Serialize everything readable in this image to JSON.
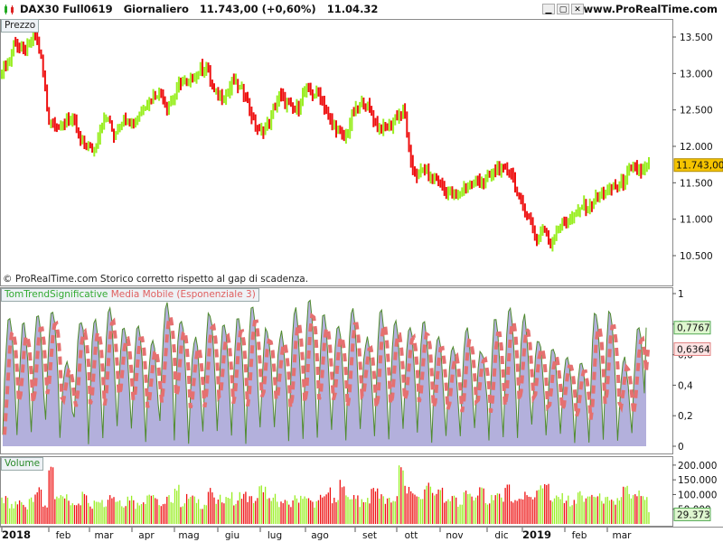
{
  "header": {
    "symbol": "DAX30 Full0619",
    "period": "Giornaliero",
    "last_price": "11.743,00 (+0,60%)",
    "time": "11.04.32",
    "url": "www.ProRealTime.com"
  },
  "colors": {
    "up": "#99ee22",
    "down": "#ee1111",
    "indicator_fill": "#b3b0dc",
    "indicator_line": "#4f8a2e",
    "ema": "#e57070",
    "price_badge": "#f5c400",
    "volume_badge": "#dff7d0"
  },
  "panels": {
    "price_label": "Prezzo",
    "indicator_label_a": "TomTrendSignificative",
    "indicator_label_b": "Media Mobile (Esponenziale 3)",
    "volume_label": "Volume"
  },
  "copyright": "© ProRealTime.com  Storico corretto rispetto al gap di scadenza.",
  "chart_data": [
    {
      "type": "candlestick",
      "title": "Prezzo",
      "ylim": [
        10250,
        13750
      ],
      "y_ticks": [
        10500,
        11000,
        11500,
        12000,
        12500,
        13000,
        13500
      ],
      "y_tick_labels": [
        "10.500",
        "11.000",
        "11.500",
        "12.000",
        "12.500",
        "13.000",
        "13.500"
      ],
      "last_value_label": "11.743,00",
      "x_tick_labels": [
        "2018",
        "feb",
        "mar",
        "apr",
        "mag",
        "giu",
        "lug",
        "ago",
        "set",
        "ott",
        "nov",
        "dic",
        "2019",
        "feb",
        "mar"
      ],
      "closes": [
        13050,
        13150,
        13450,
        13300,
        13350,
        13550,
        13200,
        12400,
        12300,
        12250,
        12400,
        12300,
        12050,
        12000,
        11950,
        12300,
        12400,
        12150,
        12350,
        12400,
        12300,
        12500,
        12600,
        12700,
        12750,
        12550,
        12650,
        12900,
        12850,
        12950,
        13050,
        13100,
        12750,
        12700,
        12700,
        12900,
        12800,
        12700,
        12350,
        12200,
        12250,
        12450,
        12700,
        12600,
        12500,
        12550,
        12800,
        12700,
        12750,
        12500,
        12300,
        12200,
        12100,
        12400,
        12550,
        12600,
        12450,
        12250,
        12250,
        12300,
        12450,
        12450,
        11700,
        11600,
        11700,
        11550,
        11550,
        11400,
        11350,
        11300,
        11450,
        11450,
        11550,
        11500,
        11600,
        11700,
        11650,
        11700,
        11350,
        11150,
        11000,
        10700,
        10900,
        10650,
        10850,
        10950,
        11000,
        11050,
        11200,
        11150,
        11300,
        11350,
        11400,
        11450,
        11500,
        11650,
        11700,
        11650,
        11743
      ]
    },
    {
      "type": "area",
      "title": "TomTrendSignificative / Media Mobile (Esponenziale 3)",
      "ylim": [
        0,
        1
      ],
      "y_ticks": [
        0,
        0.2,
        0.4,
        0.6,
        0.8,
        1
      ],
      "y_tick_labels": [
        "0",
        "0,2",
        "0,4",
        "0,6",
        "0,8",
        "1"
      ],
      "series": [
        {
          "name": "TomTrendSignificative",
          "last": "0,7767"
        },
        {
          "name": "Media Mobile (Esponenziale 3)",
          "last": "0,6364"
        }
      ],
      "cycle_peaks": [
        0.85,
        0.8,
        0.88,
        0.9,
        0.55,
        0.82,
        0.86,
        0.93,
        0.8,
        0.78,
        0.7,
        0.95,
        0.85,
        0.72,
        0.88,
        0.8,
        0.86,
        0.92,
        0.78,
        0.74,
        0.9,
        0.96,
        0.87,
        0.8,
        0.92,
        0.7,
        0.88,
        0.83,
        0.79,
        0.82,
        0.72,
        0.65,
        0.78,
        0.62,
        0.84,
        0.92,
        0.86,
        0.7,
        0.66,
        0.6,
        0.55,
        0.88,
        0.9,
        0.58,
        0.77
      ],
      "cycle_troughs": [
        0.1,
        0.05,
        0.08,
        0.15,
        0.05,
        0.2,
        0.03,
        0.06,
        0.12,
        0.1,
        0.04,
        0.18,
        0.05,
        0.02,
        0.1,
        0.08,
        0.05,
        0.04,
        0.1,
        0.12,
        0.03,
        0.06,
        0.05,
        0.09,
        0.03,
        0.1,
        0.06,
        0.05,
        0.12,
        0.08,
        0.04,
        0.07,
        0.05,
        0.1,
        0.02,
        0.05,
        0.06,
        0.12,
        0.05,
        0.08,
        0.04,
        0.03,
        0.05,
        0.02,
        0.1
      ]
    },
    {
      "type": "bar",
      "title": "Volume",
      "ylim": [
        0,
        215000
      ],
      "y_ticks": [
        0,
        50000,
        100000,
        150000,
        200000
      ],
      "y_tick_labels": [
        "",
        "50.000",
        "100.000",
        "150.000",
        "200.000"
      ],
      "last_value_label": "29.373",
      "values_k": [
        80,
        55,
        72,
        60,
        90,
        110,
        65,
        180,
        85,
        95,
        70,
        75,
        100,
        60,
        85,
        72,
        95,
        80,
        70,
        90,
        65,
        80,
        100,
        75,
        60,
        85,
        120,
        70,
        90,
        80,
        65,
        110,
        75,
        85,
        95,
        70,
        100,
        85,
        80,
        120,
        75,
        90,
        70,
        65,
        85,
        95,
        80,
        70,
        90,
        110,
        75,
        140,
        85,
        95,
        70,
        80,
        120,
        90,
        75,
        85,
        190,
        115,
        100,
        85,
        130,
        95,
        120,
        80,
        90,
        70,
        100,
        85,
        110,
        75,
        95,
        90,
        130,
        80,
        85,
        100,
        95,
        120,
        140,
        75,
        90,
        85,
        70,
        105,
        80,
        95,
        90,
        80,
        70,
        85,
        120,
        90,
        100,
        80,
        29
      ]
    }
  ]
}
